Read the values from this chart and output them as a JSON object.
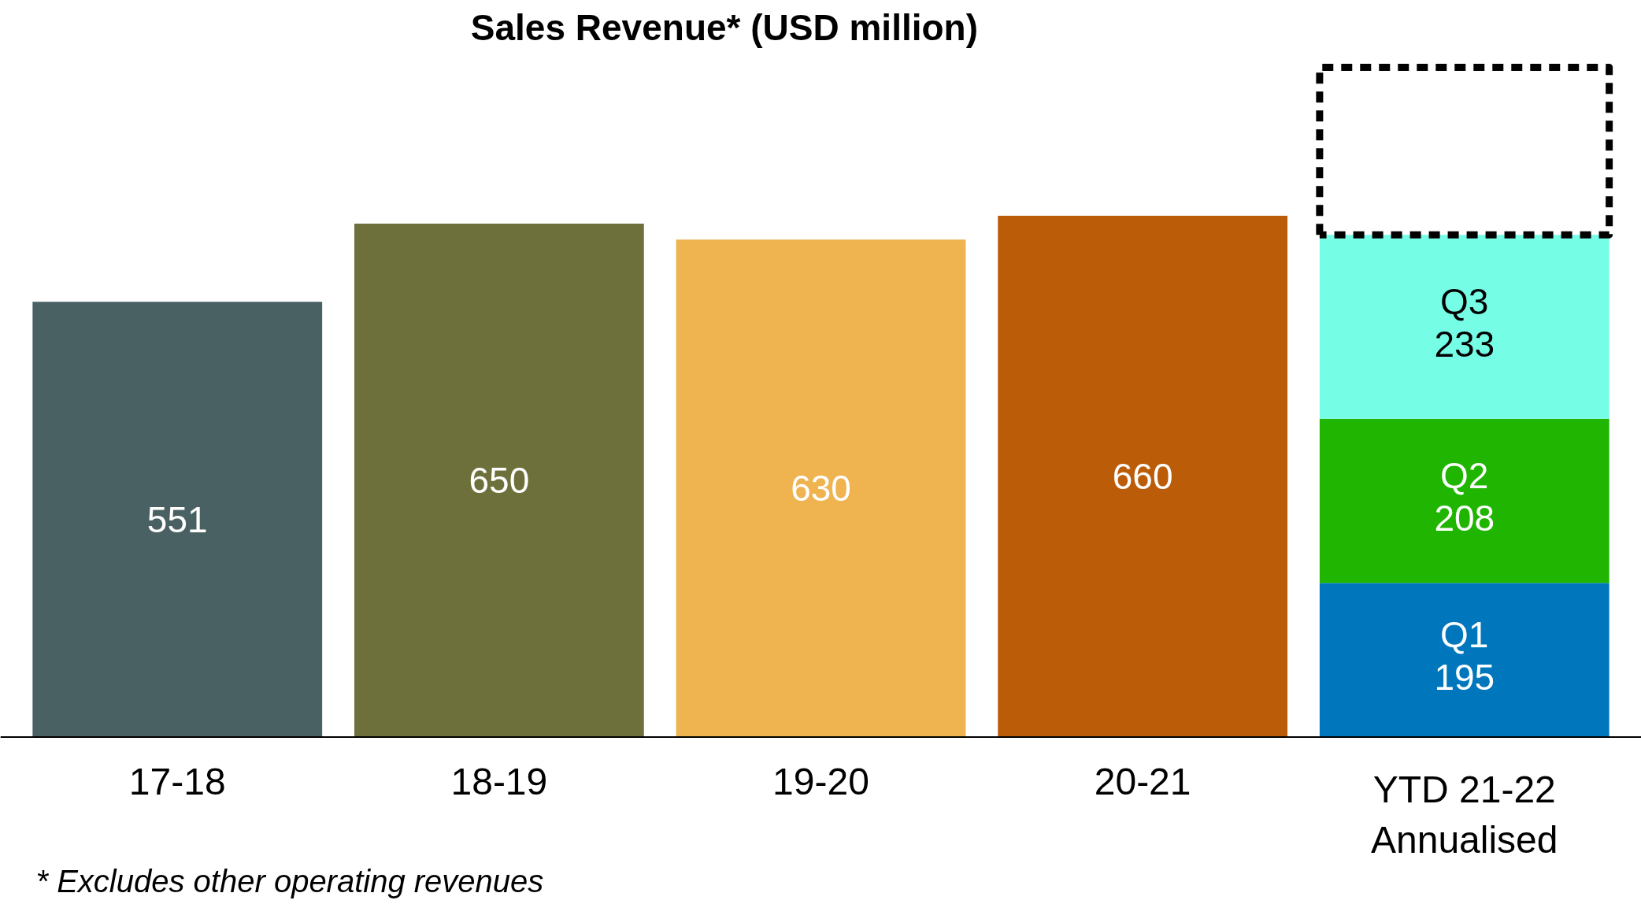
{
  "chart_data": {
    "type": "bar",
    "title": "Sales Revenue* (USD million)",
    "categories": [
      "17-18",
      "18-19",
      "19-20",
      "20-21",
      "YTD 21-22\nAnnualised"
    ],
    "stacked": true,
    "data_labels": true,
    "grid": false,
    "series": [
      {
        "values": [
          551,
          650,
          630,
          660,
          null
        ],
        "colors": [
          "#4a6163",
          "#6e703b",
          "#efb350",
          "#bb5c09",
          "#0077bd"
        ]
      },
      {
        "name": "Q1",
        "color": "#0077bd",
        "values": [
          null,
          null,
          null,
          null,
          195
        ]
      },
      {
        "name": "Q2",
        "color": "#1fb500",
        "values": [
          null,
          null,
          null,
          null,
          208
        ]
      },
      {
        "name": "Q3",
        "color": "#75fde6",
        "values": [
          null,
          null,
          null,
          null,
          233
        ]
      }
    ],
    "annotations": [
      "* Excludes other operating revenues"
    ]
  }
}
